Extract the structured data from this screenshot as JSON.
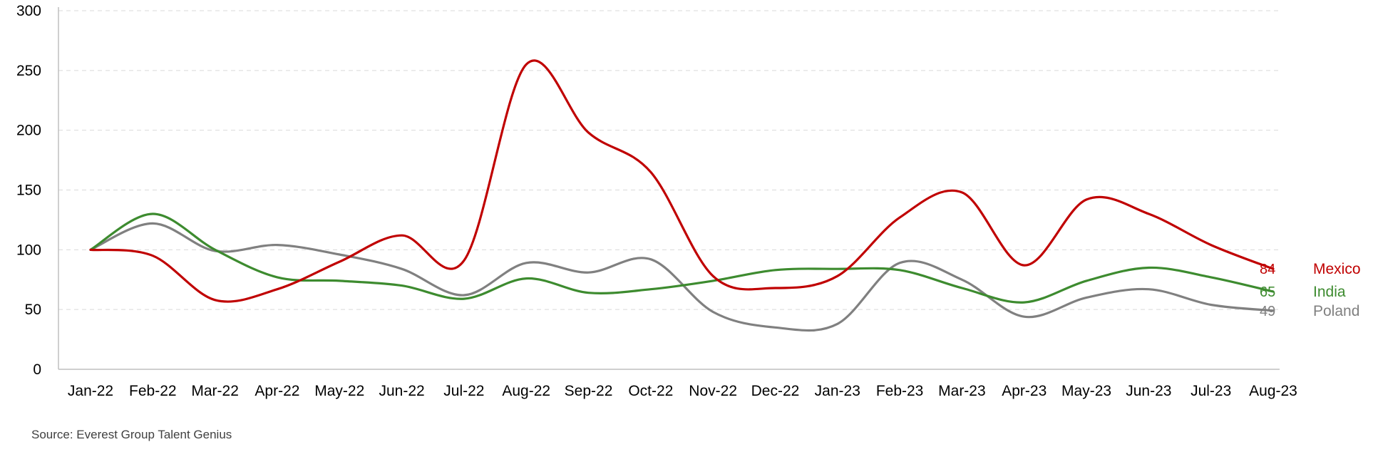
{
  "chart_data": {
    "type": "line",
    "categories": [
      "Jan-22",
      "Feb-22",
      "Mar-22",
      "Apr-22",
      "May-22",
      "Jun-22",
      "Jul-22",
      "Aug-22",
      "Sep-22",
      "Oct-22",
      "Nov-22",
      "Dec-22",
      "Jan-23",
      "Feb-23",
      "Mar-23",
      "Apr-23",
      "May-23",
      "Jun-23",
      "Jul-23",
      "Aug-23"
    ],
    "series": [
      {
        "name": "Mexico",
        "color": "#c00000",
        "end_label": "84",
        "values": [
          100,
          95,
          58,
          67,
          90,
          112,
          91,
          255,
          198,
          165,
          78,
          68,
          78,
          127,
          148,
          87,
          142,
          130,
          104,
          84
        ]
      },
      {
        "name": "India",
        "color": "#3d8b2f",
        "end_label": "65",
        "values": [
          100,
          130,
          100,
          77,
          74,
          70,
          59,
          76,
          64,
          67,
          74,
          83,
          84,
          83,
          68,
          56,
          74,
          85,
          77,
          65
        ]
      },
      {
        "name": "Poland",
        "color": "#808080",
        "end_label": "49",
        "values": [
          100,
          122,
          99,
          104,
          96,
          84,
          62,
          89,
          81,
          92,
          48,
          35,
          38,
          89,
          75,
          44,
          60,
          67,
          54,
          49
        ]
      }
    ],
    "ylim": [
      0,
      300
    ],
    "yticks": [
      "0",
      "50",
      "100",
      "150",
      "200",
      "250",
      "300"
    ],
    "grid": true,
    "legend": "right-of-line-ends",
    "source": "Source: Everest Group Talent Genius"
  }
}
